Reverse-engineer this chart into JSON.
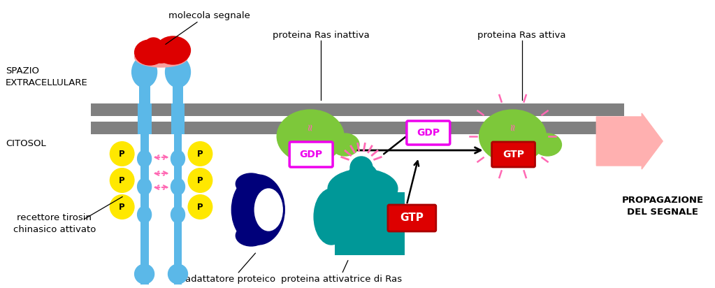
{
  "bg_color": "#ffffff",
  "membrane_color": "#808080",
  "receptor_color": "#5BB8E8",
  "receptor_outline": "#2288BB",
  "signal_red": "#DD0000",
  "signal_pink": "#F8A0A0",
  "phospho_color": "#FFE800",
  "ras_green": "#7DC83A",
  "gdp_border": "#EE00EE",
  "gdp_text": "#EE00EE",
  "gtp_fill": "#DD0000",
  "gtp_text": "#ffffff",
  "adaptor_blue": "#00007A",
  "activator_teal": "#009898",
  "pink_ray": "#FF69B4",
  "arrow_pink": "#FF9999",
  "black": "#000000",
  "white": "#ffffff",
  "spazio_label": "SPAZIO\nEXTRACELLULARE",
  "citosol_label": "CITOSOL",
  "molecola_label": "molecola segnale",
  "ras_inattiva_label": "proteina Ras inattiva",
  "ras_attiva_label": "proteina Ras attiva",
  "recettore_label": "recettore tirosin\nchinasico attivato",
  "adattatore_label": "adattatore proteico",
  "attivatrice_label": "proteina attivatrice di Ras",
  "propagazione_label": "PROPAGAZIONE\nDEL SEGNALE"
}
